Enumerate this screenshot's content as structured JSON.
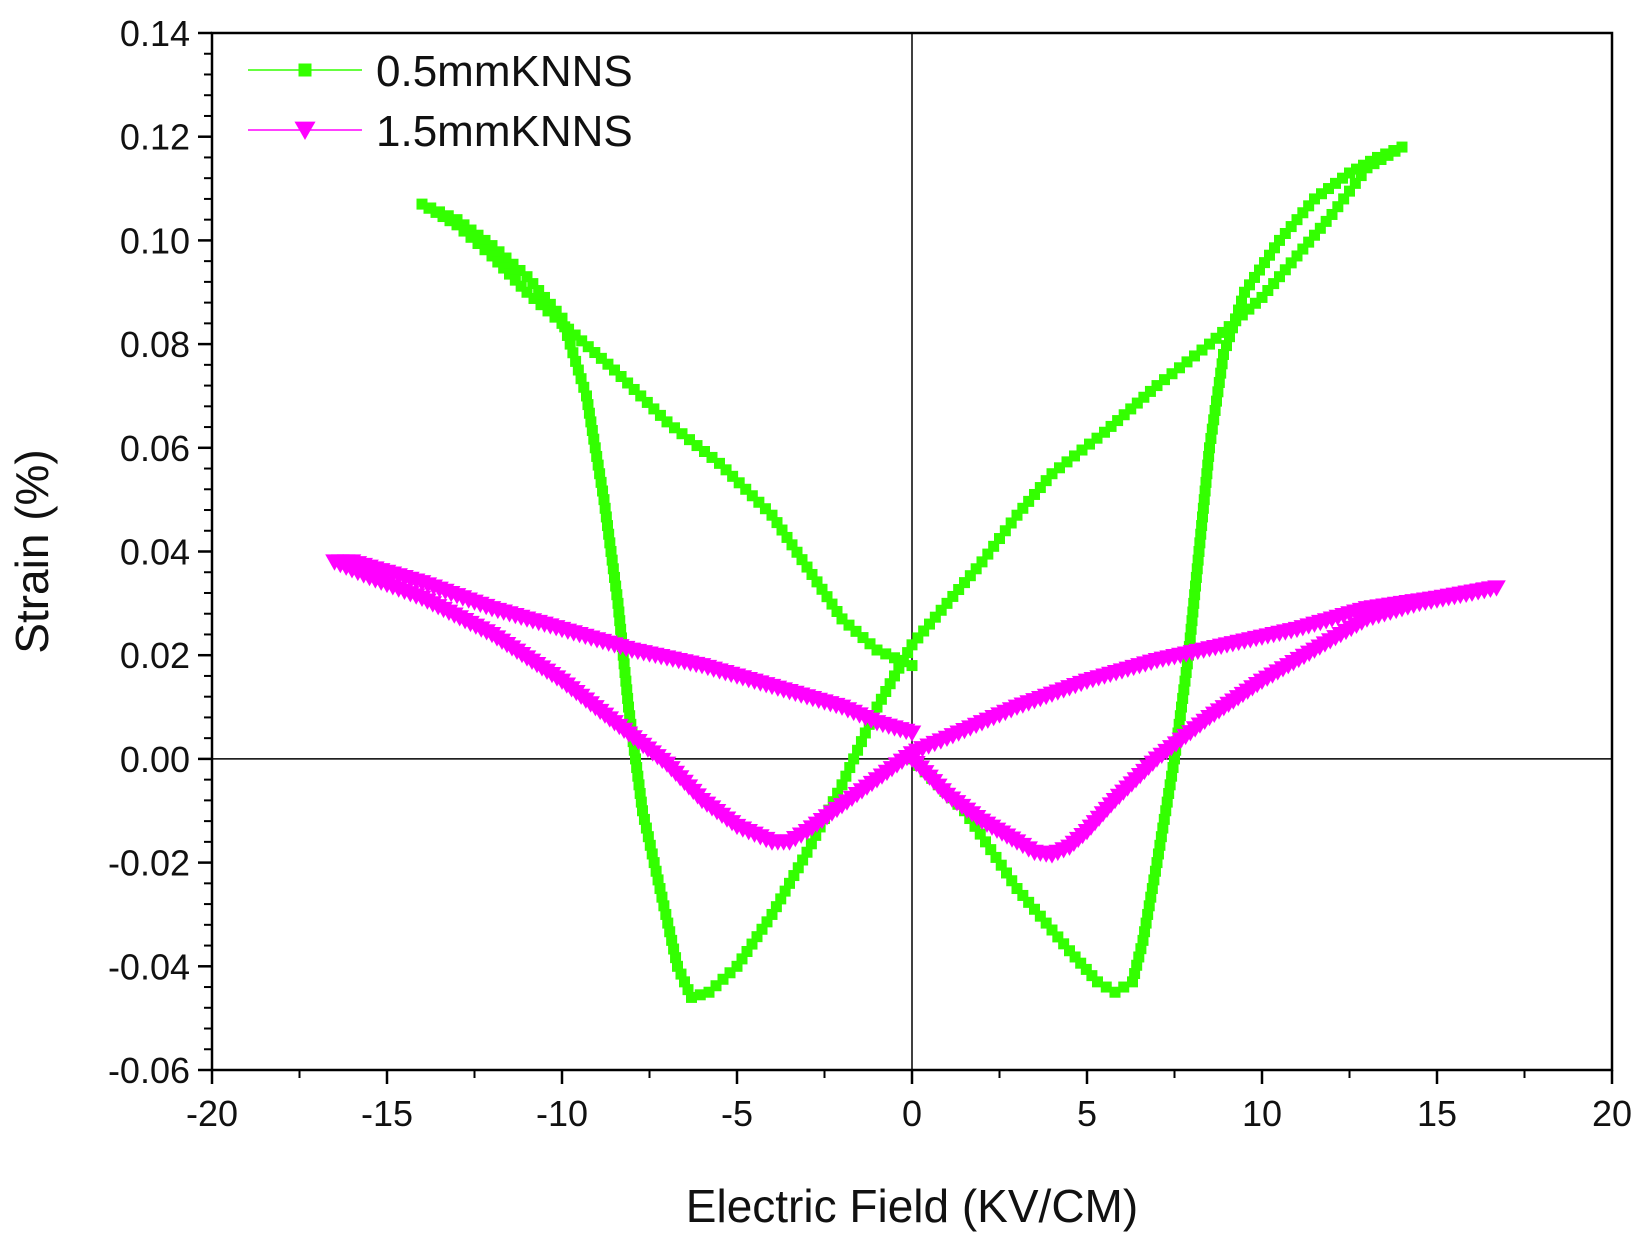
{
  "chart_data": {
    "type": "scatter",
    "title": "",
    "xlabel": "Electric Field (KV/CM)",
    "ylabel": "Strain (%)",
    "xlim": [
      -20,
      20
    ],
    "ylim": [
      -0.06,
      0.14
    ],
    "x_ticks": [
      -20,
      -15,
      -10,
      -5,
      0,
      5,
      10,
      15,
      20
    ],
    "x_tick_labels": [
      "-20",
      "-15",
      "-10",
      "-5",
      "0",
      "5",
      "10",
      "15",
      "20"
    ],
    "y_ticks": [
      -0.06,
      -0.04,
      -0.02,
      0.0,
      0.02,
      0.04,
      0.06,
      0.08,
      0.1,
      0.12,
      0.14
    ],
    "y_tick_labels": [
      "-0.06",
      "-0.04",
      "-0.02",
      "0.00",
      "0.02",
      "0.04",
      "0.06",
      "0.08",
      "0.10",
      "0.12",
      "0.14"
    ],
    "grid": false,
    "zero_lines": true,
    "legend_position": "top-left",
    "series": [
      {
        "name": "0.5mmKNNS",
        "color": "#33ff00",
        "marker": "square",
        "x": [
          0.0,
          1.5,
          3.0,
          4.5,
          5.3,
          5.8,
          6.3,
          6.6,
          7.0,
          7.5,
          7.9,
          8.2,
          8.5,
          8.9,
          9.5,
          10.5,
          11.5,
          12.5,
          13.3,
          14.0,
          13.0,
          12.0,
          11.0,
          10.0,
          8.5,
          7.0,
          5.5,
          4.0,
          3.0,
          2.0,
          1.0,
          0.0,
          -1.0,
          -2.0,
          -3.0,
          -4.0,
          -5.0,
          -5.8,
          -6.3,
          -6.7,
          -7.2,
          -7.7,
          -8.1,
          -8.4,
          -8.8,
          -9.3,
          -10.0,
          -11.0,
          -12.0,
          -13.0,
          -14.0,
          -13.0,
          -12.0,
          -11.0,
          -10.0,
          -8.5,
          -7.0,
          -5.5,
          -4.0,
          -3.0,
          -2.0,
          -1.0,
          0.0
        ],
        "y": [
          0.0,
          -0.01,
          -0.025,
          -0.037,
          -0.043,
          -0.045,
          -0.043,
          -0.035,
          -0.02,
          0.0,
          0.02,
          0.04,
          0.06,
          0.078,
          0.09,
          0.1,
          0.108,
          0.113,
          0.116,
          0.118,
          0.114,
          0.105,
          0.097,
          0.089,
          0.08,
          0.072,
          0.063,
          0.055,
          0.047,
          0.038,
          0.03,
          0.022,
          0.01,
          -0.005,
          -0.018,
          -0.03,
          -0.04,
          -0.045,
          -0.046,
          -0.04,
          -0.025,
          -0.01,
          0.01,
          0.03,
          0.05,
          0.07,
          0.085,
          0.093,
          0.099,
          0.104,
          0.107,
          0.103,
          0.097,
          0.09,
          0.084,
          0.075,
          0.065,
          0.057,
          0.047,
          0.037,
          0.027,
          0.021,
          0.018
        ]
      },
      {
        "name": "1.5mmKNNS",
        "color": "#ff00ff",
        "marker": "triangle-down",
        "x": [
          0.0,
          1.0,
          2.0,
          3.0,
          3.5,
          4.0,
          4.5,
          5.0,
          5.8,
          7.0,
          8.5,
          10.0,
          11.5,
          13.0,
          14.5,
          16.0,
          16.7,
          15.0,
          13.0,
          11.0,
          9.0,
          7.0,
          5.0,
          3.0,
          2.0,
          1.0,
          0.3,
          0.0,
          -1.0,
          -2.0,
          -3.0,
          -3.5,
          -4.0,
          -5.0,
          -6.0,
          -7.0,
          -8.5,
          -10.0,
          -12.0,
          -14.0,
          -15.5,
          -16.5,
          -16.0,
          -14.0,
          -12.0,
          -10.0,
          -8.0,
          -6.0,
          -4.0,
          -2.0,
          -1.0,
          0.0
        ],
        "y": [
          0.0,
          -0.007,
          -0.012,
          -0.016,
          -0.018,
          -0.0185,
          -0.017,
          -0.014,
          -0.008,
          0.0,
          0.008,
          0.015,
          0.021,
          0.027,
          0.03,
          0.032,
          0.033,
          0.031,
          0.029,
          0.025,
          0.022,
          0.019,
          0.015,
          0.01,
          0.007,
          0.004,
          0.002,
          0.001,
          -0.004,
          -0.009,
          -0.014,
          -0.016,
          -0.016,
          -0.013,
          -0.008,
          -0.001,
          0.007,
          0.015,
          0.024,
          0.031,
          0.035,
          0.038,
          0.038,
          0.034,
          0.029,
          0.025,
          0.021,
          0.018,
          0.014,
          0.01,
          0.007,
          0.005
        ]
      }
    ]
  }
}
